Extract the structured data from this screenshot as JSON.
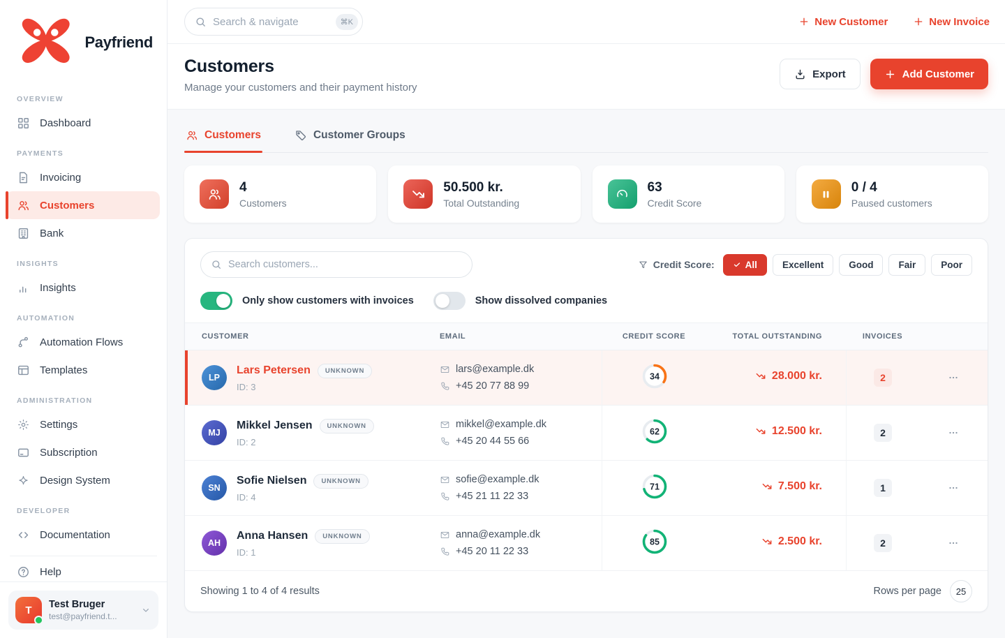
{
  "brand": {
    "name": "Payfriend"
  },
  "topbar": {
    "search": {
      "placeholder": "Search & navigate",
      "shortcut": "⌘K"
    },
    "links": [
      {
        "icon": "plus",
        "label": "New Customer"
      },
      {
        "icon": "plus",
        "label": "New Invoice"
      }
    ]
  },
  "page_header": {
    "title": "Customers",
    "subtitle": "Manage your customers and their payment history",
    "export_label": "Export",
    "add_label": "Add Customer"
  },
  "sidebar": {
    "sections": [
      {
        "label": "OVERVIEW",
        "items": [
          {
            "icon": "grid",
            "label": "Dashboard",
            "active": false
          }
        ]
      },
      {
        "label": "PAYMENTS",
        "items": [
          {
            "icon": "file",
            "label": "Invoicing",
            "active": false
          },
          {
            "icon": "users",
            "label": "Customers",
            "active": true
          },
          {
            "icon": "bank",
            "label": "Bank",
            "active": false
          }
        ]
      },
      {
        "label": "INSIGHTS",
        "items": [
          {
            "icon": "chart",
            "label": "Insights",
            "active": false
          }
        ]
      },
      {
        "label": "AUTOMATION",
        "items": [
          {
            "icon": "flow",
            "label": "Automation Flows",
            "active": false
          },
          {
            "icon": "template",
            "label": "Templates",
            "active": false
          }
        ]
      },
      {
        "label": "ADMINISTRATION",
        "items": [
          {
            "icon": "gear",
            "label": "Settings",
            "active": false
          },
          {
            "icon": "card",
            "label": "Subscription",
            "active": false
          },
          {
            "icon": "sparkle",
            "label": "Design System",
            "active": false
          }
        ]
      },
      {
        "label": "DEVELOPER",
        "items": [
          {
            "icon": "code",
            "label": "Documentation",
            "active": false
          }
        ]
      }
    ],
    "help": {
      "icon": "help",
      "label": "Help"
    },
    "user": {
      "initial": "T",
      "name": "Test Bruger",
      "email": "test@payfriend.t..."
    }
  },
  "tabs": [
    {
      "icon": "users",
      "label": "Customers",
      "active": true
    },
    {
      "icon": "tag",
      "label": "Customer Groups",
      "active": false
    }
  ],
  "stats": [
    {
      "icon": "users",
      "bg": "#ea472f",
      "value": "4",
      "label": "Customers"
    },
    {
      "icon": "trend-down",
      "bg": "#e63a2b",
      "value": "50.500 kr.",
      "label": "Total Outstanding"
    },
    {
      "icon": "gauge",
      "bg": "#16b27a",
      "value": "63",
      "label": "Credit Score"
    },
    {
      "icon": "pause",
      "bg": "#f0930c",
      "value": "0 / 4",
      "label": "Paused customers"
    }
  ],
  "filters": {
    "search_placeholder": "Search customers...",
    "credit_score_label": "Credit Score:",
    "chips": [
      {
        "label": "All",
        "active": true
      },
      {
        "label": "Excellent",
        "active": false
      },
      {
        "label": "Good",
        "active": false
      },
      {
        "label": "Fair",
        "active": false
      },
      {
        "label": "Poor",
        "active": false
      }
    ],
    "toggles": [
      {
        "label": "Only show customers with invoices",
        "on": true
      },
      {
        "label": "Show dissolved companies",
        "on": false
      }
    ]
  },
  "table": {
    "headers": [
      "Customer",
      "Email",
      "Credit Score",
      "Total Outstanding",
      "Invoices"
    ],
    "rows": [
      {
        "initials": "LP",
        "avatar": "#2e7fd1",
        "name": "Lars Petersen",
        "badge": "UNKNOWN",
        "id": "ID: 3",
        "email": "lars@example.dk",
        "phone": "+45 20 77 88 99",
        "score": 34,
        "score_color": "#f97316",
        "outstanding": "28.000 kr.",
        "invoices": "2",
        "highlighted": true
      },
      {
        "initials": "MJ",
        "avatar": "#3f51c9",
        "name": "Mikkel Jensen",
        "badge": "UNKNOWN",
        "id": "ID: 2",
        "email": "mikkel@example.dk",
        "phone": "+45 20 44 55 66",
        "score": 62,
        "score_color": "#12b376",
        "outstanding": "12.500 kr.",
        "invoices": "2",
        "highlighted": false
      },
      {
        "initials": "SN",
        "avatar": "#2d6bcc",
        "name": "Sofie Nielsen",
        "badge": "UNKNOWN",
        "id": "ID: 4",
        "email": "sofie@example.dk",
        "phone": "+45 21 11 22 33",
        "score": 71,
        "score_color": "#12b376",
        "outstanding": "7.500 kr.",
        "invoices": "1",
        "highlighted": false
      },
      {
        "initials": "AH",
        "avatar": "#7a3bd0",
        "name": "Anna Hansen",
        "badge": "UNKNOWN",
        "id": "ID: 1",
        "email": "anna@example.dk",
        "phone": "+45 20 11 22 33",
        "score": 85,
        "score_color": "#12b376",
        "outstanding": "2.500 kr.",
        "invoices": "2",
        "highlighted": false
      }
    ]
  },
  "footer": {
    "showing": "Showing 1 to 4 of 4 results",
    "rows_per_page_label": "Rows per page",
    "rows_per_page_value": "25"
  },
  "colors": {
    "accent": "#e8432d",
    "green": "#16b27a",
    "orange": "#f0930c",
    "warn_ring": "#f97316",
    "good_ring": "#12b376"
  }
}
